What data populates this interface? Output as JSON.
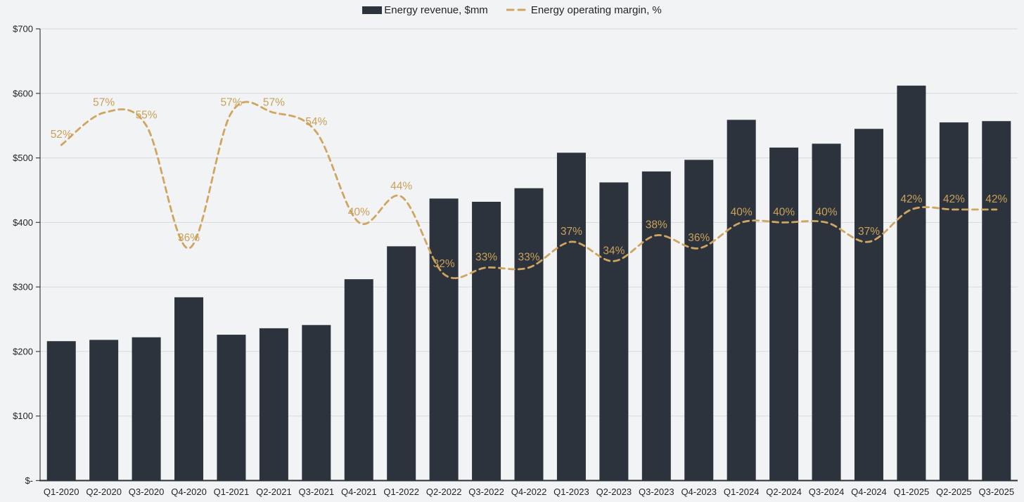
{
  "theme": {
    "background": "#f2f3f5",
    "grid_color": "#d7dadc",
    "axis_color": "#3c4043",
    "baseline_color": "#2b3138",
    "tick_text_color": "#1f2328",
    "bar_color": "#2c333d",
    "line_color": "#cfa55f",
    "data_label_color": "#c9a15a"
  },
  "legend": {
    "items": [
      {
        "swatch": "bar",
        "label": "Energy revenue, $mm"
      },
      {
        "swatch": "dash",
        "label": "Energy operating margin, %"
      }
    ]
  },
  "chart_data": {
    "type": "bar",
    "subtype": "bar-with-dashed-line-overlay",
    "title": "",
    "categories": [
      "Q1-2020",
      "Q2-2020",
      "Q3-2020",
      "Q4-2020",
      "Q1-2021",
      "Q2-2021",
      "Q3-2021",
      "Q4-2021",
      "Q1-2022",
      "Q2-2022",
      "Q3-2022",
      "Q4-2022",
      "Q1-2023",
      "Q2-2023",
      "Q3-2023",
      "Q4-2023",
      "Q1-2024",
      "Q2-2024",
      "Q3-2024",
      "Q4-2024",
      "Q1-2025",
      "Q2-2025",
      "Q3-2025"
    ],
    "series": [
      {
        "name": "Energy revenue, $mm",
        "type": "bar",
        "axis": "left",
        "values": [
          216,
          218,
          222,
          284,
          226,
          236,
          241,
          312,
          363,
          437,
          432,
          453,
          508,
          462,
          479,
          497,
          559,
          516,
          522,
          545,
          612,
          555,
          557
        ]
      },
      {
        "name": "Energy operating margin, %",
        "type": "line",
        "style": "dashed-smooth",
        "axis": "right",
        "values": [
          52,
          57,
          55,
          36,
          57,
          57,
          54,
          40,
          44,
          32,
          33,
          33,
          37,
          34,
          38,
          36,
          40,
          40,
          40,
          37,
          42,
          42,
          42
        ],
        "labels": [
          "52%",
          "57%",
          "55%",
          "36%",
          "57%",
          "57%",
          "54%",
          "40%",
          "44%",
          "32%",
          "33%",
          "33%",
          "37%",
          "34%",
          "38%",
          "36%",
          "40%",
          "40%",
          "40%",
          "37%",
          "42%",
          "42%",
          "42%"
        ]
      }
    ],
    "y_axis": {
      "min": 0,
      "max": 700,
      "step": 100,
      "ticks": [
        {
          "v": 0,
          "label": "$-"
        },
        {
          "v": 100,
          "label": "$100"
        },
        {
          "v": 200,
          "label": "$200"
        },
        {
          "v": 300,
          "label": "$300"
        },
        {
          "v": 400,
          "label": "$400"
        },
        {
          "v": 500,
          "label": "$500"
        },
        {
          "v": 600,
          "label": "$600"
        },
        {
          "v": 700,
          "label": "$700"
        }
      ],
      "grid": true
    },
    "y2_axis": {
      "min": 0,
      "max": 70,
      "visible": false
    },
    "legend_position": "top"
  }
}
